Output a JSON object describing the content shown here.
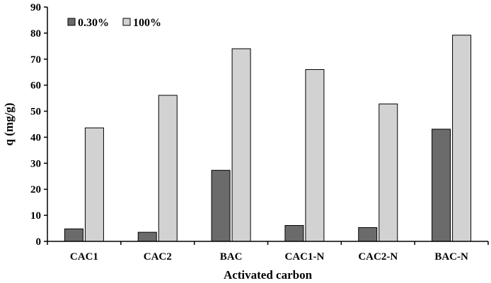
{
  "chart_data": {
    "type": "bar",
    "categories": [
      "CAC1",
      "CAC2",
      "BAC",
      "CAC1-N",
      "CAC2-N",
      "BAC-N"
    ],
    "series": [
      {
        "name": "0.30%",
        "color": "#6b6b6b",
        "values": [
          4.8,
          3.5,
          27.3,
          6.1,
          5.3,
          43.1
        ]
      },
      {
        "name": "100%",
        "color": "#d2d2d2",
        "values": [
          43.6,
          56.1,
          74.0,
          66.0,
          52.8,
          79.2
        ]
      }
    ],
    "xlabel": "Activated carbon",
    "ylabel": "q (mg/g)",
    "ylim": [
      0,
      90
    ],
    "yticks": [
      0,
      10,
      20,
      30,
      40,
      50,
      60,
      70,
      80,
      90
    ],
    "legend_position": "top-left",
    "grid": false
  }
}
